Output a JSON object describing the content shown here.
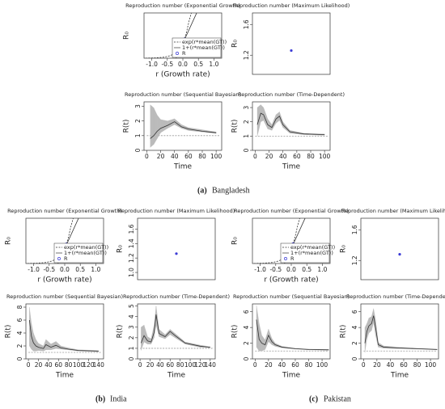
{
  "captions": [
    {
      "label": "(a)",
      "text": "Bangladesh"
    },
    {
      "label": "(b)",
      "text": "India"
    },
    {
      "label": "(c)",
      "text": "Pakistan"
    }
  ],
  "chart_data": [
    {
      "type": "line",
      "title": "Reproduction number (Exponential Growth)",
      "xlabel": "r (Growth rate)",
      "ylabel": "R₀",
      "xlim": [
        -1.25,
        1.25
      ],
      "ylim": [
        0,
        3
      ],
      "xticks": [
        {
          "value": -1,
          "label": "-1.0"
        },
        {
          "value": -0.5,
          "label": "-0.5"
        },
        {
          "value": 0,
          "label": "0.0"
        },
        {
          "value": 0.5,
          "label": "0.5"
        },
        {
          "value": 1,
          "label": "1.0"
        }
      ],
      "series": [
        {
          "name": "exp(r*mean(GT))",
          "color": "#333",
          "dash": true,
          "x": [
            -1.2,
            -0.9,
            -0.6,
            -0.4,
            -0.2,
            0,
            0.1,
            0.2,
            0.3
          ],
          "values": [
            0.005,
            0.02,
            0.07,
            0.17,
            0.41,
            1,
            1.57,
            2.46,
            3.2
          ]
        },
        {
          "name": "1+(r*mean(GT))",
          "color": "#333",
          "x": [
            -0.22,
            0.5
          ],
          "values": [
            0,
            3.25
          ]
        },
        {
          "name": "R",
          "color": "#3b3bd6",
          "marker": true,
          "x": [
            0.05
          ],
          "values": [
            1.25
          ]
        }
      ]
    },
    {
      "type": "scatter",
      "title": "Reproduction number (Maximum Likelihood)",
      "ylabel": "R₀",
      "ylim": [
        0.95,
        1.75
      ],
      "yticks": [
        1.2,
        1.6
      ],
      "categories": [
        null
      ],
      "series": [
        {
          "color": "#3b3bd6",
          "values": [
            1.26
          ]
        }
      ]
    },
    {
      "type": "line",
      "title": "Reproduction number (Sequential Bayesian)",
      "xlabel": "Time",
      "ylabel": "R(t)",
      "xlim": [
        -4,
        108
      ],
      "ylim": [
        0,
        3.3
      ],
      "xticks": [
        0,
        20,
        40,
        60,
        80,
        100
      ],
      "yticks": [
        0,
        1,
        2,
        3
      ],
      "series": [
        {
          "color": "#999",
          "dash": true,
          "x": [
            0,
            105
          ],
          "values": [
            1,
            1
          ]
        },
        {
          "color": "#333",
          "x": [
            5,
            10,
            15,
            20,
            30,
            40,
            50,
            60,
            80,
            100
          ],
          "values": [
            0.8,
            1.0,
            1.3,
            1.5,
            1.7,
            1.95,
            1.6,
            1.45,
            1.3,
            1.2
          ],
          "lower": [
            0.2,
            0.4,
            0.8,
            1.2,
            1.5,
            1.75,
            1.5,
            1.35,
            1.25,
            1.15
          ],
          "upper": [
            3.1,
            2.9,
            2.4,
            2.1,
            2.0,
            2.15,
            1.75,
            1.55,
            1.4,
            1.25
          ]
        }
      ]
    },
    {
      "type": "line",
      "title": "Reproduction number (Time-Dependent)",
      "xlabel": "Time",
      "ylabel": "R(t)",
      "xlim": [
        -4,
        108
      ],
      "ylim": [
        0,
        3.4
      ],
      "xticks": [
        0,
        20,
        40,
        60,
        80,
        100
      ],
      "yticks": [
        0,
        1,
        2,
        3
      ],
      "series": [
        {
          "color": "#999",
          "dash": true,
          "x": [
            0,
            105
          ],
          "values": [
            1,
            1
          ]
        },
        {
          "color": "#333",
          "x": [
            3,
            8,
            12,
            18,
            24,
            30,
            35,
            40,
            50,
            70,
            100
          ],
          "values": [
            1.8,
            2.6,
            2.5,
            1.8,
            1.6,
            2.2,
            2.4,
            1.8,
            1.3,
            1.15,
            1.1
          ],
          "lower": [
            1.0,
            2.0,
            2.1,
            1.5,
            1.4,
            1.9,
            2.1,
            1.6,
            1.2,
            1.1,
            1.05
          ],
          "upper": [
            3.0,
            3.2,
            3.0,
            2.2,
            1.8,
            2.5,
            2.7,
            2.0,
            1.4,
            1.2,
            1.15
          ]
        }
      ]
    },
    {
      "type": "line",
      "title": "Reproduction number (Exponential Growth)",
      "xlabel": "r (Growth rate)",
      "ylabel": "R₀",
      "xlim": [
        -1.25,
        1.25
      ],
      "ylim": [
        0,
        3
      ],
      "xticks": [
        {
          "value": -1,
          "label": "-1.0"
        },
        {
          "value": -0.5,
          "label": "-0.5"
        },
        {
          "value": 0,
          "label": "0.0"
        },
        {
          "value": 0.5,
          "label": "0.5"
        },
        {
          "value": 1,
          "label": "1.0"
        }
      ],
      "series": [
        {
          "name": "exp(r*mean(GT))",
          "color": "#333",
          "dash": true,
          "x": [
            -1.2,
            -0.9,
            -0.6,
            -0.4,
            -0.2,
            0,
            0.1,
            0.2,
            0.3
          ],
          "values": [
            0.005,
            0.02,
            0.07,
            0.17,
            0.41,
            1,
            1.57,
            2.46,
            3.2
          ]
        },
        {
          "name": "1+(r*mean(GT))",
          "color": "#333",
          "x": [
            -0.22,
            0.5
          ],
          "values": [
            0,
            3.25
          ]
        },
        {
          "name": "R",
          "color": "#3b3bd6",
          "marker": true,
          "x": [
            0.05
          ],
          "values": [
            1.26
          ]
        }
      ]
    },
    {
      "type": "scatter",
      "title": "Reproduction number (Maximum Likelihood)",
      "ylabel": "R₀",
      "ylim": [
        0.9,
        1.75
      ],
      "yticks": [
        {
          "value": 1,
          "label": "1.0"
        },
        1.2,
        1.4,
        1.6
      ],
      "categories": [
        null
      ],
      "series": [
        {
          "color": "#3b3bd6",
          "values": [
            1.26
          ]
        }
      ]
    },
    {
      "type": "line",
      "title": "Reproduction number (Sequential Bayesian)",
      "xlabel": "Time",
      "ylabel": "R(t)",
      "xlim": [
        -5,
        150
      ],
      "ylim": [
        0,
        8.5
      ],
      "xticks": [
        0,
        20,
        40,
        60,
        80,
        100,
        120,
        140
      ],
      "yticks": [
        0,
        2,
        4,
        6,
        8
      ],
      "series": [
        {
          "color": "#999",
          "dash": true,
          "x": [
            0,
            145
          ],
          "values": [
            1,
            1
          ]
        },
        {
          "color": "#333",
          "x": [
            2,
            6,
            10,
            15,
            20,
            30,
            35,
            45,
            55,
            65,
            80,
            100,
            140
          ],
          "values": [
            6,
            3.5,
            2.5,
            2,
            1.8,
            1.6,
            2.2,
            1.8,
            2.1,
            1.7,
            1.5,
            1.3,
            1.2
          ],
          "lower": [
            2,
            1.5,
            1.2,
            1.2,
            1.3,
            1.2,
            1.4,
            1.4,
            1.6,
            1.5,
            1.4,
            1.2,
            1.1
          ],
          "upper": [
            8,
            5.5,
            4,
            3,
            2.4,
            2,
            3,
            2.3,
            2.7,
            2,
            1.7,
            1.4,
            1.3
          ]
        }
      ]
    },
    {
      "type": "line",
      "title": "Reproduction number (Time-Dependent)",
      "xlabel": "Time",
      "ylabel": "R(t)",
      "xlim": [
        -5,
        150
      ],
      "ylim": [
        0,
        5.2
      ],
      "xticks": [
        0,
        20,
        40,
        60,
        80,
        100,
        120,
        140
      ],
      "yticks": [
        0,
        1,
        2,
        3,
        4,
        5
      ],
      "series": [
        {
          "color": "#999",
          "dash": true,
          "x": [
            0,
            145
          ],
          "values": [
            1,
            1
          ]
        },
        {
          "color": "#333",
          "x": [
            2,
            8,
            15,
            22,
            28,
            32,
            38,
            50,
            60,
            70,
            90,
            120,
            140
          ],
          "values": [
            1.5,
            2.2,
            1.7,
            1.6,
            2.5,
            4.2,
            2.4,
            2.1,
            2.6,
            2.2,
            1.5,
            1.2,
            1.1
          ],
          "lower": [
            0.8,
            1.6,
            1.4,
            1.4,
            2,
            3.2,
            2.1,
            1.9,
            2.3,
            2,
            1.4,
            1.1,
            1.05
          ],
          "upper": [
            3,
            3.2,
            2.1,
            1.9,
            3.2,
            5,
            2.8,
            2.3,
            2.8,
            2.4,
            1.6,
            1.3,
            1.15
          ]
        }
      ]
    },
    {
      "type": "line",
      "title": "Reproduction number (Exponential Growth)",
      "xlabel": "r (Growth rate)",
      "ylabel": "R₀",
      "xlim": [
        -1.25,
        1.25
      ],
      "ylim": [
        0,
        3
      ],
      "xticks": [
        {
          "value": -1,
          "label": "-1.0"
        },
        {
          "value": -0.5,
          "label": "-0.5"
        },
        {
          "value": 0,
          "label": "0.0"
        },
        {
          "value": 0.5,
          "label": "0.5"
        },
        {
          "value": 1,
          "label": "1.0"
        }
      ],
      "series": [
        {
          "name": "exp(r*mean(GT))",
          "color": "#333",
          "dash": true,
          "x": [
            -1.2,
            -0.9,
            -0.6,
            -0.4,
            -0.2,
            0,
            0.1,
            0.2,
            0.3
          ],
          "values": [
            0.005,
            0.02,
            0.07,
            0.17,
            0.41,
            1,
            1.57,
            2.46,
            3.2
          ]
        },
        {
          "name": "1+(r*mean(GT))",
          "color": "#333",
          "x": [
            -0.22,
            0.5
          ],
          "values": [
            0,
            3.25
          ]
        },
        {
          "name": "R",
          "color": "#3b3bd6",
          "marker": true,
          "x": [
            0.06
          ],
          "values": [
            1.28
          ]
        }
      ]
    },
    {
      "type": "scatter",
      "title": "Reproduction number (Maximum Likelihood)",
      "ylabel": "R₀",
      "ylim": [
        0.95,
        1.75
      ],
      "yticks": [
        1.2,
        1.6
      ],
      "categories": [
        null
      ],
      "series": [
        {
          "color": "#3b3bd6",
          "values": [
            1.28
          ]
        }
      ]
    },
    {
      "type": "line",
      "title": "Reproduction number (Sequential Bayesian)",
      "xlabel": "Time",
      "ylabel": "R(t)",
      "xlim": [
        -4,
        112
      ],
      "ylim": [
        0,
        7
      ],
      "xticks": [
        0,
        20,
        40,
        60,
        80,
        100
      ],
      "yticks": [
        0,
        2,
        4,
        6
      ],
      "series": [
        {
          "color": "#999",
          "dash": true,
          "x": [
            0,
            110
          ],
          "values": [
            1,
            1
          ]
        },
        {
          "color": "#333",
          "x": [
            2,
            6,
            10,
            15,
            20,
            25,
            30,
            40,
            60,
            80,
            110
          ],
          "values": [
            5,
            2.5,
            2,
            1.8,
            3,
            2.2,
            1.8,
            1.5,
            1.3,
            1.2,
            1.15
          ],
          "lower": [
            1.5,
            1,
            1,
            1.2,
            2.2,
            1.8,
            1.6,
            1.4,
            1.25,
            1.15,
            1.1
          ],
          "upper": [
            6.8,
            4.5,
            3,
            2.4,
            3.8,
            2.6,
            2,
            1.6,
            1.35,
            1.25,
            1.2
          ]
        }
      ]
    },
    {
      "type": "line",
      "title": "Reproduction number (Time-Dependent)",
      "xlabel": "Time",
      "ylabel": "R(t)",
      "xlim": [
        -4,
        112
      ],
      "ylim": [
        0,
        7
      ],
      "xticks": [
        0,
        20,
        40,
        60,
        80,
        100
      ],
      "yticks": [
        0,
        2,
        4,
        6
      ],
      "series": [
        {
          "color": "#999",
          "dash": true,
          "x": [
            0,
            110
          ],
          "values": [
            1,
            1
          ]
        },
        {
          "color": "#333",
          "x": [
            2,
            5,
            8,
            12,
            15,
            18,
            22,
            30,
            50,
            80,
            110
          ],
          "values": [
            2,
            3.5,
            4.2,
            4.5,
            5.5,
            4,
            1.8,
            1.5,
            1.4,
            1.3,
            1.2
          ],
          "lower": [
            0.8,
            2.5,
            3.3,
            3.6,
            4.6,
            3,
            1.5,
            1.35,
            1.3,
            1.25,
            1.15
          ],
          "upper": [
            4,
            4.5,
            5.2,
            5.4,
            6.4,
            5,
            2.1,
            1.65,
            1.5,
            1.35,
            1.25
          ]
        }
      ]
    }
  ]
}
